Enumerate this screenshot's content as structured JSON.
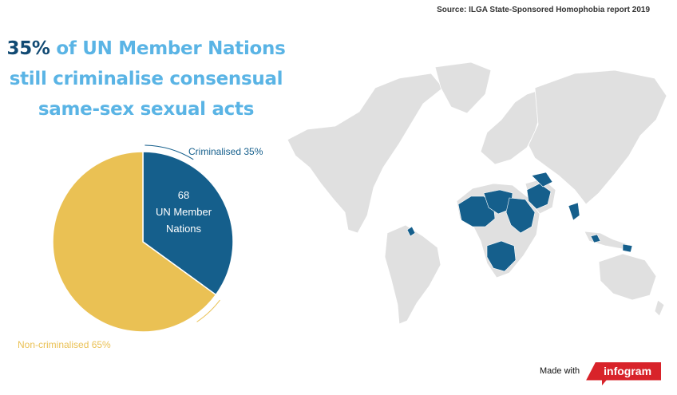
{
  "source": "Source: ILGA State-Sponsored Homophobia report 2019",
  "headline": {
    "highlight": "35%",
    "line1_rest": " of UN Member Nations",
    "line2": "still criminalise consensual",
    "line3": "same-sex sexual acts"
  },
  "colors": {
    "criminalised": "#155f8c",
    "non_criminalised": "#eac154",
    "highlight_text": "#114a73",
    "headline_text": "#5ab4e5",
    "map_land": "#e0e0e0",
    "brand_red": "#d8232a"
  },
  "chart_data": {
    "type": "pie",
    "slices": [
      {
        "label": "Criminalised 35%",
        "value": 35,
        "color": "#155f8c"
      },
      {
        "label": "Non-criminalised 65%",
        "value": 65,
        "color": "#eac154"
      }
    ],
    "center_label": [
      "68",
      "UN Member",
      "Nations"
    ]
  },
  "map": {
    "description_icon": "world-map-icon"
  },
  "footer": {
    "made_with": "Made with",
    "brand": "infogram"
  }
}
